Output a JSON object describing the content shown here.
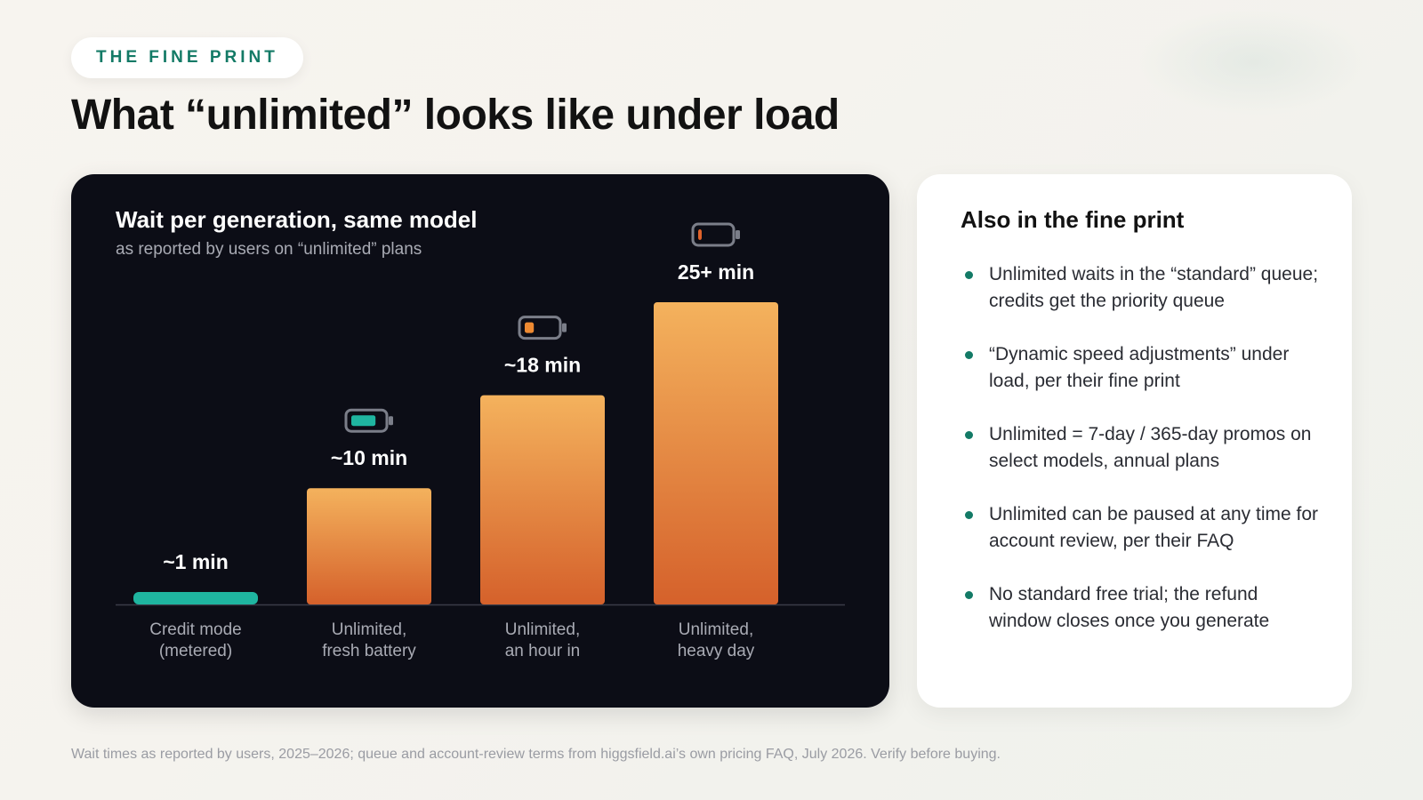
{
  "eyebrow": "THE FINE PRINT",
  "title": "What “unlimited” looks like under load",
  "chart_data": {
    "type": "bar",
    "title": "Wait per generation, same model",
    "subtitle": "as reported by users on “unlimited” plans",
    "xlabel": "",
    "ylabel": "",
    "unit": "min",
    "grid": false,
    "legend": "none",
    "ylim": [
      0,
      26
    ],
    "categories": [
      [
        "Credit mode",
        "(metered)"
      ],
      [
        "Unlimited,",
        "fresh battery"
      ],
      [
        "Unlimited,",
        "an hour in"
      ],
      [
        "Unlimited,",
        "heavy day"
      ]
    ],
    "values": [
      1,
      10,
      18,
      26
    ],
    "data_labels": [
      "~1 min",
      "~10 min",
      "~18 min",
      "25+ min"
    ],
    "battery_levels": [
      null,
      0.8,
      0.3,
      0.1
    ],
    "colors": {
      "metered_bar": "#1fb5a0",
      "bar_top": "#f4b25d",
      "bar_bottom": "#d5612b",
      "battery_high": "#1fb5a0",
      "battery_mid": "#ee8a32",
      "battery_low": "#e0622a"
    }
  },
  "side": {
    "title": "Also in the fine print",
    "items": [
      "Unlimited waits in the “standard” queue; credits get the priority queue",
      "“Dynamic speed adjustments” under load, per their fine print",
      "Unlimited = 7-day / 365-day promos on select models, annual plans",
      "Unlimited can be paused at any time for account review, per their FAQ",
      "No standard free trial; the refund window closes once you generate"
    ]
  },
  "footnote": "Wait times as reported by users, 2025–2026; queue and account-review terms from higgsfield.ai’s own pricing FAQ, July 2026. Verify before buying."
}
